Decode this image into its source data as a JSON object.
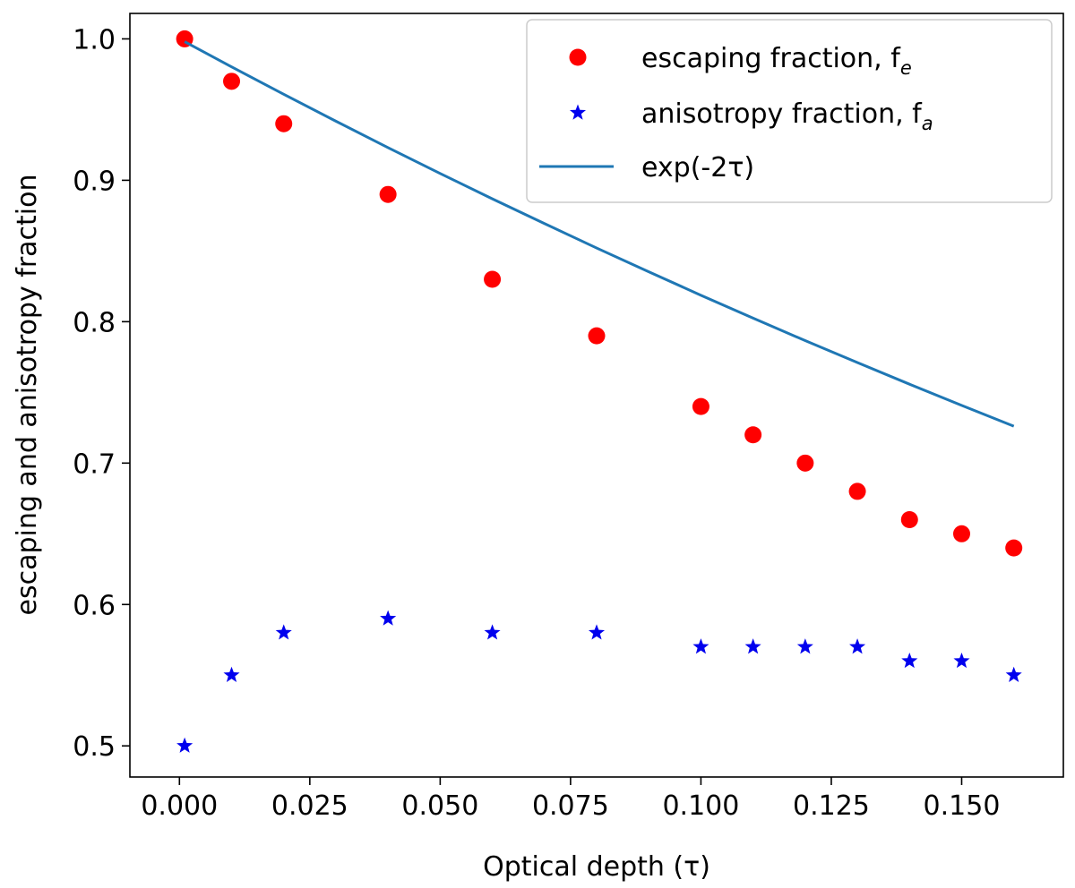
{
  "chart_data": {
    "type": "scatter",
    "title": "",
    "xlabel": "Optical depth (τ)",
    "ylabel": "escaping and anisotropy fraction",
    "xlim": [
      -0.0095,
      0.1695
    ],
    "ylim": [
      0.478,
      1.018
    ],
    "xticks": [
      0.0,
      0.025,
      0.05,
      0.075,
      0.1,
      0.125,
      0.15
    ],
    "xtick_labels": [
      "0.000",
      "0.025",
      "0.050",
      "0.075",
      "0.100",
      "0.125",
      "0.150"
    ],
    "yticks": [
      0.5,
      0.6,
      0.7,
      0.8,
      0.9,
      1.0
    ],
    "ytick_labels": [
      "0.5",
      "0.6",
      "0.7",
      "0.8",
      "0.9",
      "1.0"
    ],
    "legend_position": "top-right",
    "series": [
      {
        "name": "escaping fraction, f",
        "name_sub": "e",
        "kind": "scatter",
        "marker": "circle",
        "color": "#ff0000",
        "x": [
          0.001,
          0.01,
          0.02,
          0.04,
          0.06,
          0.08,
          0.1,
          0.11,
          0.12,
          0.13,
          0.14,
          0.15,
          0.16
        ],
        "y": [
          1.0,
          0.97,
          0.94,
          0.89,
          0.83,
          0.79,
          0.74,
          0.72,
          0.7,
          0.68,
          0.66,
          0.65,
          0.64
        ]
      },
      {
        "name": "anisotropy fraction, f",
        "name_sub": "a",
        "kind": "scatter",
        "marker": "star",
        "color": "#0000ee",
        "x": [
          0.001,
          0.01,
          0.02,
          0.04,
          0.06,
          0.08,
          0.1,
          0.11,
          0.12,
          0.13,
          0.14,
          0.15,
          0.16
        ],
        "y": [
          0.5,
          0.55,
          0.58,
          0.59,
          0.58,
          0.58,
          0.57,
          0.57,
          0.57,
          0.57,
          0.56,
          0.56,
          0.55
        ]
      },
      {
        "name": "exp(-2τ)",
        "name_sub": "",
        "kind": "line",
        "marker": "none",
        "color": "#1f77b4",
        "x": [
          0.001,
          0.01,
          0.02,
          0.03,
          0.04,
          0.05,
          0.06,
          0.07,
          0.08,
          0.09,
          0.1,
          0.11,
          0.12,
          0.13,
          0.14,
          0.15,
          0.16
        ],
        "y": [
          0.998,
          0.9802,
          0.9608,
          0.9418,
          0.9231,
          0.9048,
          0.8869,
          0.8694,
          0.8521,
          0.8353,
          0.8187,
          0.8025,
          0.7866,
          0.7711,
          0.7558,
          0.7408,
          0.7261
        ]
      }
    ]
  }
}
